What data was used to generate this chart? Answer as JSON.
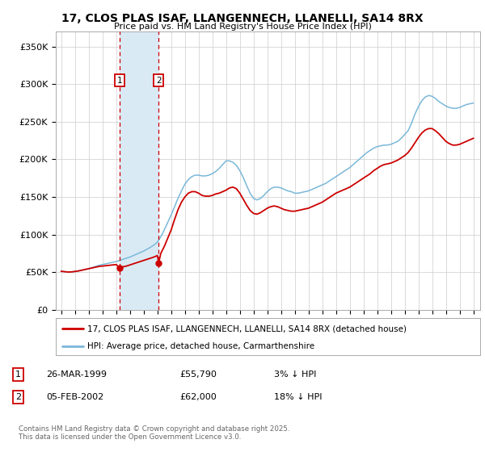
{
  "title": "17, CLOS PLAS ISAF, LLANGENNECH, LLANELLI, SA14 8RX",
  "subtitle": "Price paid vs. HM Land Registry's House Price Index (HPI)",
  "ylim": [
    0,
    370000
  ],
  "yticks": [
    0,
    50000,
    100000,
    150000,
    200000,
    250000,
    300000,
    350000
  ],
  "ytick_labels": [
    "£0",
    "£50K",
    "£100K",
    "£150K",
    "£200K",
    "£250K",
    "£300K",
    "£350K"
  ],
  "xlim_start": 1994.6,
  "xlim_end": 2025.5,
  "marker1_x": 1999.23,
  "marker1_label": "1",
  "marker1_date": "26-MAR-1999",
  "marker1_price": "£55,790",
  "marker1_hpi": "3% ↓ HPI",
  "marker1_y": 55790,
  "marker2_x": 2002.09,
  "marker2_label": "2",
  "marker2_date": "05-FEB-2002",
  "marker2_price": "£62,000",
  "marker2_hpi": "18% ↓ HPI",
  "marker2_y": 62000,
  "hpi_color": "#7ab8d9",
  "price_color": "#cc0000",
  "shade_color": "#daeaf5",
  "marker_box_color": "#cc0000",
  "grid_color": "#cccccc",
  "background_color": "#ffffff",
  "legend_label_price": "17, CLOS PLAS ISAF, LLANGENNECH, LLANELLI, SA14 8RX (detached house)",
  "legend_label_hpi": "HPI: Average price, detached house, Carmarthenshire",
  "footer": "Contains HM Land Registry data © Crown copyright and database right 2025.\nThis data is licensed under the Open Government Licence v3.0.",
  "hpi_data": [
    [
      1995.0,
      51000
    ],
    [
      1995.25,
      50500
    ],
    [
      1995.5,
      50000
    ],
    [
      1995.75,
      50200
    ],
    [
      1996.0,
      50800
    ],
    [
      1996.25,
      51500
    ],
    [
      1996.5,
      52500
    ],
    [
      1996.75,
      53500
    ],
    [
      1997.0,
      54500
    ],
    [
      1997.25,
      56000
    ],
    [
      1997.5,
      57500
    ],
    [
      1997.75,
      59000
    ],
    [
      1998.0,
      60000
    ],
    [
      1998.25,
      61000
    ],
    [
      1998.5,
      62000
    ],
    [
      1998.75,
      63000
    ],
    [
      1999.0,
      64000
    ],
    [
      1999.25,
      65500
    ],
    [
      1999.5,
      67000
    ],
    [
      1999.75,
      68500
    ],
    [
      2000.0,
      70000
    ],
    [
      2000.25,
      72000
    ],
    [
      2000.5,
      74000
    ],
    [
      2000.75,
      76000
    ],
    [
      2001.0,
      78000
    ],
    [
      2001.25,
      80500
    ],
    [
      2001.5,
      83000
    ],
    [
      2001.75,
      86000
    ],
    [
      2002.0,
      90000
    ],
    [
      2002.25,
      97000
    ],
    [
      2002.5,
      106000
    ],
    [
      2002.75,
      116000
    ],
    [
      2003.0,
      126000
    ],
    [
      2003.25,
      137000
    ],
    [
      2003.5,
      148000
    ],
    [
      2003.75,
      158000
    ],
    [
      2004.0,
      167000
    ],
    [
      2004.25,
      173000
    ],
    [
      2004.5,
      177000
    ],
    [
      2004.75,
      179000
    ],
    [
      2005.0,
      179000
    ],
    [
      2005.25,
      178000
    ],
    [
      2005.5,
      178000
    ],
    [
      2005.75,
      179000
    ],
    [
      2006.0,
      181000
    ],
    [
      2006.25,
      184000
    ],
    [
      2006.5,
      188000
    ],
    [
      2006.75,
      193000
    ],
    [
      2007.0,
      198000
    ],
    [
      2007.25,
      198000
    ],
    [
      2007.5,
      196000
    ],
    [
      2007.75,
      192000
    ],
    [
      2008.0,
      185000
    ],
    [
      2008.25,
      176000
    ],
    [
      2008.5,
      165000
    ],
    [
      2008.75,
      155000
    ],
    [
      2009.0,
      148000
    ],
    [
      2009.25,
      146000
    ],
    [
      2009.5,
      148000
    ],
    [
      2009.75,
      152000
    ],
    [
      2010.0,
      157000
    ],
    [
      2010.25,
      161000
    ],
    [
      2010.5,
      163000
    ],
    [
      2010.75,
      163000
    ],
    [
      2011.0,
      162000
    ],
    [
      2011.25,
      160000
    ],
    [
      2011.5,
      158000
    ],
    [
      2011.75,
      157000
    ],
    [
      2012.0,
      155000
    ],
    [
      2012.25,
      155000
    ],
    [
      2012.5,
      156000
    ],
    [
      2012.75,
      157000
    ],
    [
      2013.0,
      158000
    ],
    [
      2013.25,
      160000
    ],
    [
      2013.5,
      162000
    ],
    [
      2013.75,
      164000
    ],
    [
      2014.0,
      166000
    ],
    [
      2014.25,
      168000
    ],
    [
      2014.5,
      171000
    ],
    [
      2014.75,
      174000
    ],
    [
      2015.0,
      177000
    ],
    [
      2015.25,
      180000
    ],
    [
      2015.5,
      183000
    ],
    [
      2015.75,
      186000
    ],
    [
      2016.0,
      189000
    ],
    [
      2016.25,
      193000
    ],
    [
      2016.5,
      197000
    ],
    [
      2016.75,
      201000
    ],
    [
      2017.0,
      205000
    ],
    [
      2017.25,
      209000
    ],
    [
      2017.5,
      212000
    ],
    [
      2017.75,
      215000
    ],
    [
      2018.0,
      217000
    ],
    [
      2018.25,
      218000
    ],
    [
      2018.5,
      219000
    ],
    [
      2018.75,
      219000
    ],
    [
      2019.0,
      220000
    ],
    [
      2019.25,
      222000
    ],
    [
      2019.5,
      224000
    ],
    [
      2019.75,
      228000
    ],
    [
      2020.0,
      233000
    ],
    [
      2020.25,
      238000
    ],
    [
      2020.5,
      248000
    ],
    [
      2020.75,
      260000
    ],
    [
      2021.0,
      270000
    ],
    [
      2021.25,
      278000
    ],
    [
      2021.5,
      283000
    ],
    [
      2021.75,
      285000
    ],
    [
      2022.0,
      284000
    ],
    [
      2022.25,
      281000
    ],
    [
      2022.5,
      277000
    ],
    [
      2022.75,
      274000
    ],
    [
      2023.0,
      271000
    ],
    [
      2023.25,
      269000
    ],
    [
      2023.5,
      268000
    ],
    [
      2023.75,
      268000
    ],
    [
      2024.0,
      269000
    ],
    [
      2024.25,
      271000
    ],
    [
      2024.5,
      273000
    ],
    [
      2024.75,
      274000
    ],
    [
      2025.0,
      275000
    ]
  ],
  "price_data": [
    [
      1995.0,
      51000
    ],
    [
      1995.25,
      50500
    ],
    [
      1995.5,
      50000
    ],
    [
      1995.75,
      50200
    ],
    [
      1996.0,
      50800
    ],
    [
      1996.25,
      51500
    ],
    [
      1996.5,
      52500
    ],
    [
      1996.75,
      53500
    ],
    [
      1997.0,
      54500
    ],
    [
      1997.25,
      55500
    ],
    [
      1997.5,
      56500
    ],
    [
      1997.75,
      57500
    ],
    [
      1998.0,
      58000
    ],
    [
      1998.25,
      58500
    ],
    [
      1998.5,
      59000
    ],
    [
      1998.75,
      59500
    ],
    [
      1999.0,
      60000
    ],
    [
      1999.25,
      55790
    ],
    [
      1999.5,
      57000
    ],
    [
      1999.75,
      58000
    ],
    [
      2000.0,
      59500
    ],
    [
      2000.25,
      61000
    ],
    [
      2000.5,
      62500
    ],
    [
      2000.75,
      64000
    ],
    [
      2001.0,
      65500
    ],
    [
      2001.25,
      67000
    ],
    [
      2001.5,
      68500
    ],
    [
      2001.75,
      70000
    ],
    [
      2002.0,
      72000
    ],
    [
      2002.09,
      62000
    ],
    [
      2002.25,
      75000
    ],
    [
      2002.5,
      84000
    ],
    [
      2003.0,
      106000
    ],
    [
      2003.25,
      120000
    ],
    [
      2003.5,
      133000
    ],
    [
      2003.75,
      143000
    ],
    [
      2004.0,
      150000
    ],
    [
      2004.25,
      155000
    ],
    [
      2004.5,
      157000
    ],
    [
      2004.75,
      157000
    ],
    [
      2005.0,
      155000
    ],
    [
      2005.25,
      152000
    ],
    [
      2005.5,
      151000
    ],
    [
      2005.75,
      151000
    ],
    [
      2006.0,
      152000
    ],
    [
      2006.25,
      154000
    ],
    [
      2006.5,
      155000
    ],
    [
      2006.75,
      157000
    ],
    [
      2007.0,
      159000
    ],
    [
      2007.25,
      162000
    ],
    [
      2007.5,
      163000
    ],
    [
      2007.75,
      161000
    ],
    [
      2008.0,
      155000
    ],
    [
      2008.25,
      147000
    ],
    [
      2008.5,
      139000
    ],
    [
      2008.75,
      132000
    ],
    [
      2009.0,
      128000
    ],
    [
      2009.25,
      127000
    ],
    [
      2009.5,
      129000
    ],
    [
      2009.75,
      132000
    ],
    [
      2010.0,
      135000
    ],
    [
      2010.25,
      137000
    ],
    [
      2010.5,
      138000
    ],
    [
      2010.75,
      137000
    ],
    [
      2011.0,
      135000
    ],
    [
      2011.25,
      133000
    ],
    [
      2011.5,
      132000
    ],
    [
      2011.75,
      131000
    ],
    [
      2012.0,
      131000
    ],
    [
      2012.25,
      132000
    ],
    [
      2012.5,
      133000
    ],
    [
      2012.75,
      134000
    ],
    [
      2013.0,
      135000
    ],
    [
      2013.25,
      137000
    ],
    [
      2013.5,
      139000
    ],
    [
      2013.75,
      141000
    ],
    [
      2014.0,
      143000
    ],
    [
      2014.25,
      146000
    ],
    [
      2014.5,
      149000
    ],
    [
      2014.75,
      152000
    ],
    [
      2015.0,
      155000
    ],
    [
      2015.25,
      157000
    ],
    [
      2015.5,
      159000
    ],
    [
      2015.75,
      161000
    ],
    [
      2016.0,
      163000
    ],
    [
      2016.25,
      166000
    ],
    [
      2016.5,
      169000
    ],
    [
      2016.75,
      172000
    ],
    [
      2017.0,
      175000
    ],
    [
      2017.25,
      178000
    ],
    [
      2017.5,
      181000
    ],
    [
      2017.75,
      185000
    ],
    [
      2018.0,
      188000
    ],
    [
      2018.25,
      191000
    ],
    [
      2018.5,
      193000
    ],
    [
      2018.75,
      194000
    ],
    [
      2019.0,
      195000
    ],
    [
      2019.25,
      197000
    ],
    [
      2019.5,
      199000
    ],
    [
      2019.75,
      202000
    ],
    [
      2020.0,
      205000
    ],
    [
      2020.25,
      209000
    ],
    [
      2020.5,
      215000
    ],
    [
      2020.75,
      222000
    ],
    [
      2021.0,
      229000
    ],
    [
      2021.25,
      235000
    ],
    [
      2021.5,
      239000
    ],
    [
      2021.75,
      241000
    ],
    [
      2022.0,
      241000
    ],
    [
      2022.25,
      238000
    ],
    [
      2022.5,
      234000
    ],
    [
      2022.75,
      229000
    ],
    [
      2023.0,
      224000
    ],
    [
      2023.25,
      221000
    ],
    [
      2023.5,
      219000
    ],
    [
      2023.75,
      219000
    ],
    [
      2024.0,
      220000
    ],
    [
      2024.25,
      222000
    ],
    [
      2024.5,
      224000
    ],
    [
      2024.75,
      226000
    ],
    [
      2025.0,
      228000
    ]
  ]
}
